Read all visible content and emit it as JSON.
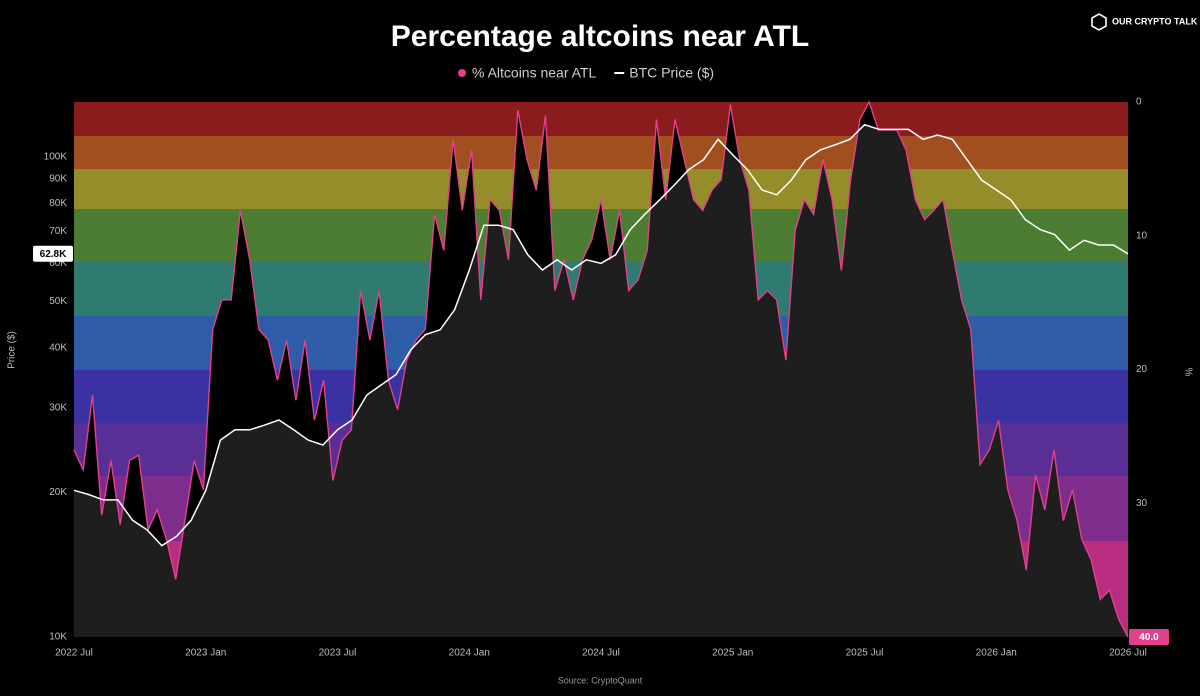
{
  "logo": "OUR CRYPTO TALK",
  "chart_data": {
    "type": "line",
    "title": "Percentage altcoins near ATL",
    "source": "Source: CryptoQuant",
    "ylabel": "Price ($)",
    "y2label": "%",
    "x_labels": [
      "2022 Jul",
      "2023 Jan",
      "2023 Jul",
      "2024 Jan",
      "2024 Jul",
      "2025 Jan",
      "2025 Jul",
      "2026 Jan",
      "2026 Jul"
    ],
    "log_y": true,
    "ylim": [
      10000,
      130000
    ],
    "yticks": [
      {
        "value": 10000,
        "label": "10K"
      },
      {
        "value": 20000,
        "label": "20K"
      },
      {
        "value": 30000,
        "label": "30K"
      },
      {
        "value": 40000,
        "label": "40K"
      },
      {
        "value": 50000,
        "label": "50K"
      },
      {
        "value": 60000,
        "label": "60K"
      },
      {
        "value": 70000,
        "label": "70K"
      },
      {
        "value": 80000,
        "label": "80K"
      },
      {
        "value": 90000,
        "label": "90K"
      },
      {
        "value": 100000,
        "label": "100K"
      }
    ],
    "y2lim": [
      0,
      40
    ],
    "y2_inverted": true,
    "y2ticks": [
      0,
      10,
      20,
      30,
      40
    ],
    "series": [
      {
        "name": "% Altcoins near ATL",
        "color": "#e2408c",
        "axis": "y2",
        "last_label": "40.0",
        "values": [
          26.0,
          27.5,
          21.9,
          30.9,
          26.8,
          31.6,
          26.8,
          26.4,
          32.0,
          30.5,
          32.7,
          35.7,
          31.3,
          26.8,
          29.0,
          17.0,
          14.8,
          14.8,
          8.1,
          11.8,
          17.0,
          17.8,
          20.8,
          17.8,
          22.3,
          17.8,
          23.8,
          20.8,
          28.3,
          25.3,
          24.5,
          14.1,
          17.8,
          14.1,
          20.8,
          23.0,
          19.3,
          17.8,
          17.0,
          8.4,
          11.1,
          2.8,
          8.1,
          3.6,
          14.8,
          7.3,
          8.1,
          11.8,
          0.6,
          4.3,
          6.6,
          1.0,
          14.1,
          11.8,
          14.8,
          11.8,
          10.3,
          7.3,
          11.8,
          8.1,
          14.1,
          13.3,
          11.1,
          1.3,
          7.3,
          1.3,
          4.3,
          7.3,
          8.1,
          6.6,
          5.8,
          0.2,
          4.3,
          6.6,
          14.8,
          14.1,
          14.8,
          19.3,
          9.6,
          7.3,
          8.4,
          4.3,
          7.3,
          12.6,
          5.8,
          1.3,
          0,
          2.1,
          2.1,
          2.1,
          3.6,
          7.3,
          8.8,
          8.1,
          7.3,
          11.1,
          14.8,
          17.0,
          27.1,
          26.0,
          23.8,
          29.0,
          31.3,
          35.0,
          27.9,
          30.5,
          26.0,
          31.3,
          29.0,
          32.7,
          34.2,
          37.2,
          36.5,
          38.7,
          40
        ]
      },
      {
        "name": "BTC Price ($)",
        "color": "#ffffff",
        "last_label": "62.8K",
        "values": [
          20200,
          19800,
          19300,
          19300,
          17500,
          16700,
          15500,
          16200,
          17500,
          20200,
          25700,
          27000,
          27000,
          27600,
          28300,
          27000,
          25700,
          25100,
          27000,
          28300,
          31900,
          33500,
          35200,
          39600,
          42600,
          43600,
          48000,
          58100,
          72000,
          72000,
          70500,
          62500,
          58100,
          61000,
          58100,
          61000,
          60000,
          62500,
          70500,
          75900,
          81300,
          87300,
          94000,
          98600,
          108700,
          100900,
          94000,
          85300,
          83300,
          89400,
          98600,
          103400,
          105900,
          108700,
          116600,
          114000,
          114000,
          114000,
          108700,
          111000,
          108700,
          98600,
          89400,
          85300,
          81300,
          73900,
          70500,
          68800,
          63900,
          67000,
          65500,
          65500,
          62800
        ]
      }
    ]
  }
}
